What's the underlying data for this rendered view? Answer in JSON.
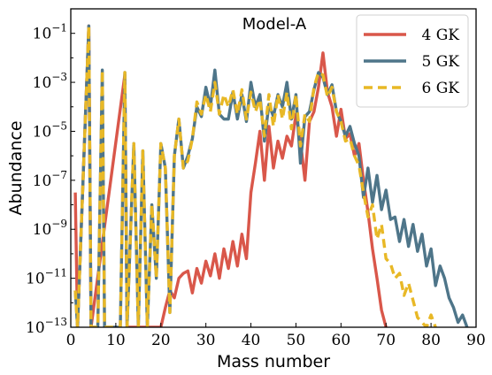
{
  "chart_data": {
    "type": "line",
    "title": "Model-A",
    "xlabel": "Mass number",
    "ylabel": "Abundance",
    "xlim": [
      0,
      90
    ],
    "ylim_log10": [
      -13,
      0
    ],
    "yscale": "log",
    "grid": false,
    "legend_position": "top-right",
    "x_ticks": [
      0,
      10,
      20,
      30,
      40,
      50,
      60,
      70,
      80,
      90
    ],
    "y_ticks": [
      {
        "exp": -1,
        "label": "10",
        "sup": "−1"
      },
      {
        "exp": -3,
        "label": "10",
        "sup": "−3"
      },
      {
        "exp": -5,
        "label": "10",
        "sup": "−5"
      },
      {
        "exp": -7,
        "label": "10",
        "sup": "−7"
      },
      {
        "exp": -9,
        "label": "10",
        "sup": "−9"
      },
      {
        "exp": -11,
        "label": "10",
        "sup": "−11"
      },
      {
        "exp": -13,
        "label": "10",
        "sup": "−13"
      }
    ],
    "series": [
      {
        "name": "4 GK",
        "color": "#d9574a",
        "dash": "solid",
        "points": [
          [
            1,
            -7.5
          ],
          [
            1.5,
            -13
          ],
          [
            4,
            -0.7
          ],
          [
            4.5,
            -13
          ],
          [
            12,
            -2.7
          ],
          [
            12.5,
            -13
          ],
          [
            16,
            -13
          ],
          [
            19,
            -13
          ],
          [
            20,
            -13
          ],
          [
            21,
            -12.2
          ],
          [
            22,
            -11.5
          ],
          [
            23,
            -11.8
          ],
          [
            24,
            -11
          ],
          [
            25,
            -10.8
          ],
          [
            26,
            -10.7
          ],
          [
            27,
            -11.6
          ],
          [
            28,
            -10.6
          ],
          [
            29,
            -11.2
          ],
          [
            30,
            -10.3
          ],
          [
            31,
            -10.9
          ],
          [
            32,
            -10
          ],
          [
            33,
            -11
          ],
          [
            34,
            -9.8
          ],
          [
            35,
            -10.6
          ],
          [
            36,
            -9.5
          ],
          [
            37,
            -10.5
          ],
          [
            38,
            -9.2
          ],
          [
            39,
            -10.2
          ],
          [
            40,
            -7.5
          ],
          [
            41,
            -6.3
          ],
          [
            42,
            -5
          ],
          [
            43,
            -7
          ],
          [
            44,
            -4.8
          ],
          [
            45,
            -6.5
          ],
          [
            46,
            -5.4
          ],
          [
            47,
            -6.1
          ],
          [
            48,
            -5.2
          ],
          [
            49,
            -5.6
          ],
          [
            50,
            -4.3
          ],
          [
            51,
            -5.4
          ],
          [
            52,
            -7
          ],
          [
            53,
            -4.6
          ],
          [
            54,
            -4.2
          ],
          [
            55,
            -3.2
          ],
          [
            56,
            -1.8
          ],
          [
            57,
            -3.4
          ],
          [
            58,
            -4
          ],
          [
            59,
            -5.2
          ],
          [
            60,
            -4.1
          ],
          [
            61,
            -5.3
          ],
          [
            62,
            -5.1
          ],
          [
            63,
            -6
          ],
          [
            64,
            -5.5
          ],
          [
            65,
            -7
          ],
          [
            66,
            -8.3
          ],
          [
            67,
            -9.8
          ],
          [
            68,
            -11
          ],
          [
            69,
            -12.3
          ],
          [
            70,
            -13
          ]
        ]
      },
      {
        "name": "5 GK",
        "color": "#4e7589",
        "dash": "solid",
        "points": [
          [
            1,
            -11.5
          ],
          [
            1.5,
            -13
          ],
          [
            4,
            -0.7
          ],
          [
            4.5,
            -13
          ],
          [
            6,
            -13
          ],
          [
            7,
            -2.5
          ],
          [
            7.5,
            -13
          ],
          [
            9,
            -13
          ],
          [
            11,
            -13
          ],
          [
            12,
            -2.6
          ],
          [
            12.5,
            -13
          ],
          [
            14,
            -5.5
          ],
          [
            15,
            -13
          ],
          [
            16,
            -5.8
          ],
          [
            17,
            -13
          ],
          [
            18,
            -8
          ],
          [
            19,
            -11
          ],
          [
            20,
            -5.5
          ],
          [
            21,
            -6.5
          ],
          [
            22,
            -12.4
          ],
          [
            23,
            -6
          ],
          [
            24,
            -4.5
          ],
          [
            25,
            -6.5
          ],
          [
            26,
            -6
          ],
          [
            27,
            -5.3
          ],
          [
            28,
            -4
          ],
          [
            29,
            -4.4
          ],
          [
            30,
            -3.2
          ],
          [
            31,
            -4
          ],
          [
            32,
            -2.5
          ],
          [
            33,
            -4.3
          ],
          [
            34,
            -4.5
          ],
          [
            35,
            -4.5
          ],
          [
            36,
            -3.4
          ],
          [
            37,
            -4.5
          ],
          [
            38,
            -3.5
          ],
          [
            39,
            -4.6
          ],
          [
            40,
            -3
          ],
          [
            41,
            -4
          ],
          [
            42,
            -3.5
          ],
          [
            43,
            -5.4
          ],
          [
            44,
            -3.9
          ],
          [
            45,
            -4.4
          ],
          [
            46,
            -3.5
          ],
          [
            47,
            -4
          ],
          [
            48,
            -3
          ],
          [
            49,
            -4.5
          ],
          [
            50,
            -3.5
          ],
          [
            51,
            -6.3
          ],
          [
            52,
            -4.4
          ],
          [
            53,
            -4.2
          ],
          [
            54,
            -3.3
          ],
          [
            55,
            -2.6
          ],
          [
            56,
            -2.8
          ],
          [
            57,
            -3.5
          ],
          [
            58,
            -3.1
          ],
          [
            59,
            -4.2
          ],
          [
            60,
            -4.6
          ],
          [
            61,
            -5.2
          ],
          [
            62,
            -4.8
          ],
          [
            63,
            -5.5
          ],
          [
            64,
            -6
          ],
          [
            65,
            -7.7
          ],
          [
            66,
            -6.5
          ],
          [
            67,
            -7.9
          ],
          [
            68,
            -6.8
          ],
          [
            69,
            -8.2
          ],
          [
            70,
            -7.4
          ],
          [
            71,
            -8.6
          ],
          [
            72,
            -8.5
          ],
          [
            73,
            -9.5
          ],
          [
            74,
            -8.6
          ],
          [
            75,
            -9.7
          ],
          [
            76,
            -8.8
          ],
          [
            77,
            -9.9
          ],
          [
            78,
            -9.2
          ],
          [
            79,
            -10.5
          ],
          [
            80,
            -9.8
          ],
          [
            81,
            -11.3
          ],
          [
            82,
            -10.5
          ],
          [
            83,
            -11
          ],
          [
            84,
            -11.8
          ],
          [
            85,
            -12.2
          ],
          [
            86,
            -12.8
          ],
          [
            87,
            -12.5
          ],
          [
            88,
            -13
          ]
        ]
      },
      {
        "name": "6 GK",
        "color": "#e8b826",
        "dash": "dashed",
        "points": [
          [
            1,
            -11.5
          ],
          [
            1.5,
            -13
          ],
          [
            4,
            -0.7
          ],
          [
            4.5,
            -13
          ],
          [
            6,
            -13
          ],
          [
            7,
            -2.5
          ],
          [
            7.5,
            -13
          ],
          [
            9,
            -13
          ],
          [
            11,
            -13
          ],
          [
            12,
            -2.6
          ],
          [
            12.5,
            -13
          ],
          [
            14,
            -5.5
          ],
          [
            15,
            -13
          ],
          [
            16,
            -5.8
          ],
          [
            17,
            -13
          ],
          [
            18,
            -8
          ],
          [
            19,
            -11
          ],
          [
            20,
            -5.5
          ],
          [
            21,
            -6.5
          ],
          [
            22,
            -12.4
          ],
          [
            23,
            -6
          ],
          [
            24,
            -4.5
          ],
          [
            25,
            -6.5
          ],
          [
            26,
            -6.2
          ],
          [
            27,
            -5.3
          ],
          [
            28,
            -3.8
          ],
          [
            29,
            -4.3
          ],
          [
            30,
            -3.5
          ],
          [
            31,
            -4.2
          ],
          [
            32,
            -3
          ],
          [
            33,
            -4.3
          ],
          [
            34,
            -3.5
          ],
          [
            35,
            -4
          ],
          [
            36,
            -3.3
          ],
          [
            37,
            -4.3
          ],
          [
            38,
            -3.3
          ],
          [
            39,
            -4.5
          ],
          [
            40,
            -3.4
          ],
          [
            41,
            -4.2
          ],
          [
            42,
            -3.7
          ],
          [
            43,
            -5.2
          ],
          [
            44,
            -3.5
          ],
          [
            45,
            -4.8
          ],
          [
            46,
            -3.5
          ],
          [
            47,
            -4.5
          ],
          [
            48,
            -3.4
          ],
          [
            49,
            -4.9
          ],
          [
            50,
            -3.5
          ],
          [
            51,
            -5.6
          ],
          [
            52,
            -4.3
          ],
          [
            53,
            -4.6
          ],
          [
            54,
            -3.2
          ],
          [
            55,
            -2.6
          ],
          [
            56,
            -2.7
          ],
          [
            57,
            -3.6
          ],
          [
            58,
            -3.2
          ],
          [
            59,
            -4.2
          ],
          [
            60,
            -4.6
          ],
          [
            61,
            -5.4
          ],
          [
            62,
            -5.3
          ],
          [
            63,
            -6
          ],
          [
            64,
            -6.4
          ],
          [
            65,
            -7.5
          ],
          [
            66,
            -8.5
          ],
          [
            67,
            -8
          ],
          [
            68,
            -9.4
          ],
          [
            69,
            -8.8
          ],
          [
            70,
            -10.2
          ],
          [
            71,
            -10.4
          ],
          [
            72,
            -11
          ],
          [
            73,
            -10.8
          ],
          [
            74,
            -11.7
          ],
          [
            75,
            -11.2
          ],
          [
            76,
            -11.9
          ],
          [
            77,
            -12.6
          ],
          [
            78,
            -12.8
          ],
          [
            79,
            -13
          ],
          [
            80,
            -12.5
          ],
          [
            81,
            -13
          ]
        ]
      }
    ]
  }
}
